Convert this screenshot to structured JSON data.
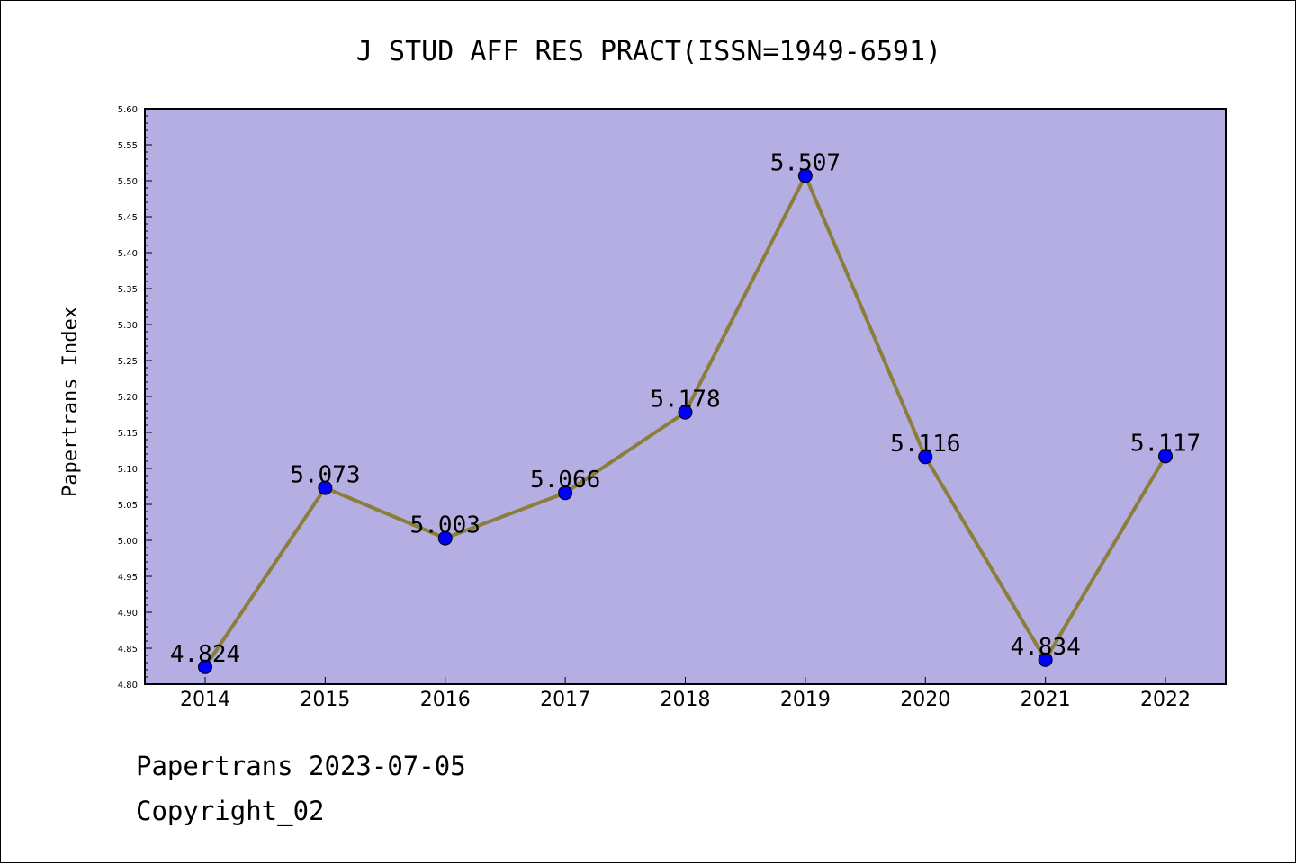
{
  "chart_data": {
    "type": "line",
    "title": "J STUD AFF RES PRACT(ISSN=1949-6591)",
    "xlabel": "",
    "ylabel": "Papertrans Index",
    "categories": [
      "2014",
      "2015",
      "2016",
      "2017",
      "2018",
      "2019",
      "2020",
      "2021",
      "2022"
    ],
    "values": [
      4.824,
      5.073,
      5.003,
      5.066,
      5.178,
      5.507,
      5.116,
      4.834,
      5.117
    ],
    "data_labels": [
      "4.824",
      "5.073",
      "5.003",
      "5.066",
      "5.178",
      "5.507",
      "5.116",
      "4.834",
      "5.117"
    ],
    "ylim": [
      4.8,
      5.6
    ],
    "yticks": [
      "4.80",
      "4.85",
      "4.90",
      "4.95",
      "5.00",
      "5.05",
      "5.10",
      "5.15",
      "5.20",
      "5.25",
      "5.30",
      "5.35",
      "5.40",
      "5.45",
      "5.50",
      "5.55",
      "5.60"
    ],
    "grid": false,
    "legend": "none",
    "colors": {
      "plot_background": "#b4aee2",
      "line": "#8b7d3a",
      "marker": "#0000ff"
    }
  },
  "footer": {
    "line1": "Papertrans 2023-07-05",
    "line2": "Copyright_02"
  }
}
